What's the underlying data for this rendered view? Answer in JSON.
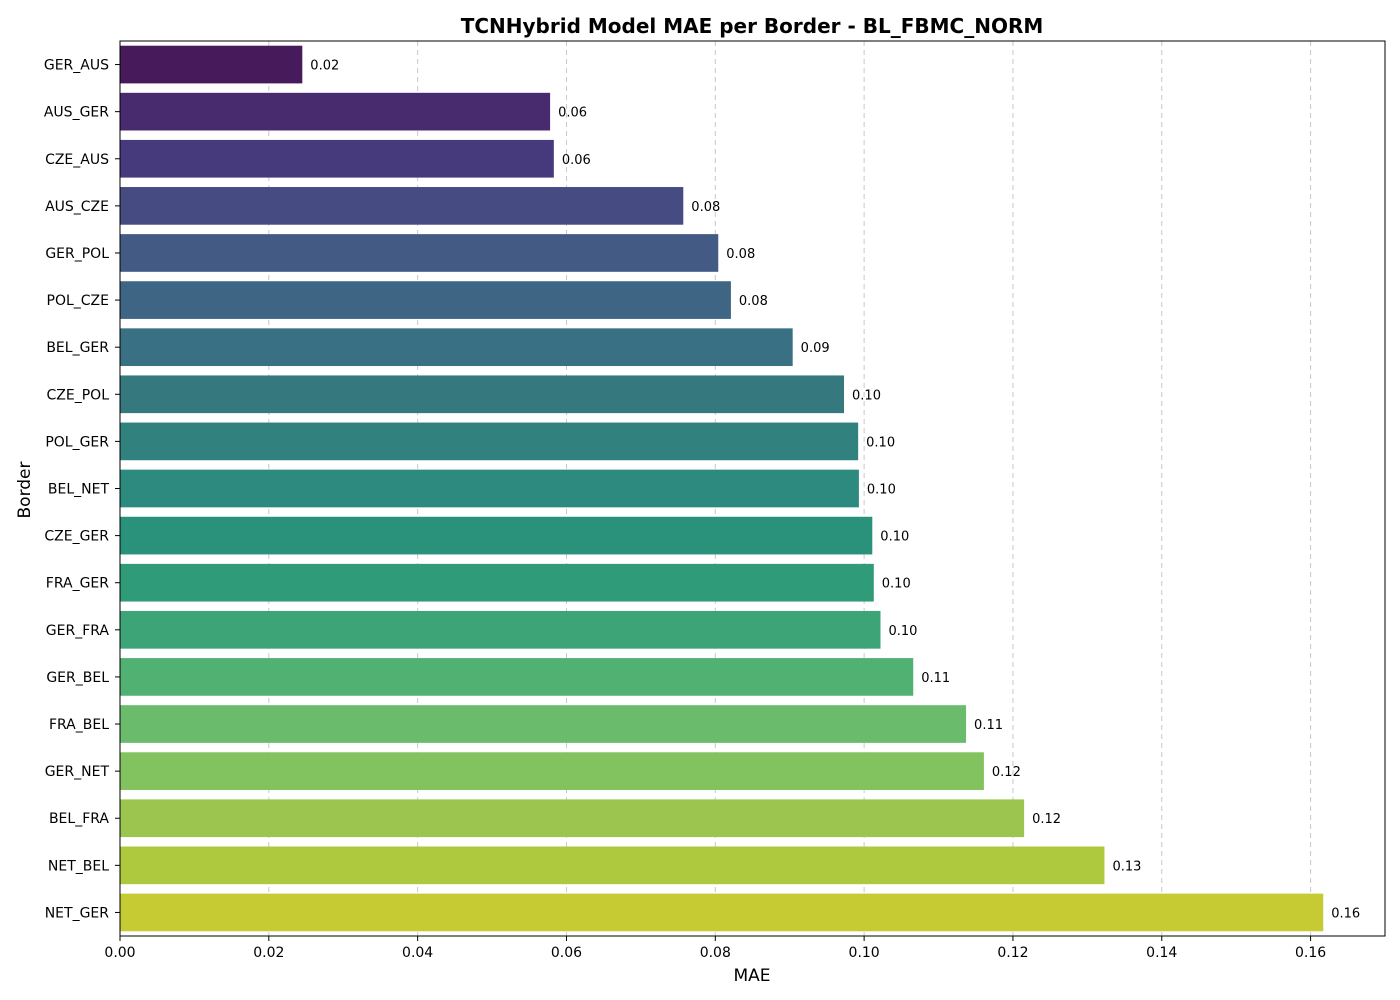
{
  "chart_data": {
    "type": "bar",
    "orientation": "horizontal",
    "title": "TCNHybrid Model MAE per Border - BL_FBMC_NORM",
    "xlabel": "MAE",
    "ylabel": "Border",
    "xlim": [
      0,
      0.17
    ],
    "xticks": [
      "0.00",
      "0.02",
      "0.04",
      "0.06",
      "0.08",
      "0.10",
      "0.12",
      "0.14",
      "0.16"
    ],
    "grid": "x-axis dashed",
    "colormap": "viridis",
    "categories": [
      "GER_AUS",
      "AUS_GER",
      "CZE_AUS",
      "AUS_CZE",
      "GER_POL",
      "POL_CZE",
      "BEL_GER",
      "CZE_POL",
      "POL_GER",
      "BEL_NET",
      "CZE_GER",
      "FRA_GER",
      "GER_FRA",
      "GER_BEL",
      "FRA_BEL",
      "GER_NET",
      "BEL_FRA",
      "NET_BEL",
      "NET_GER"
    ],
    "values": [
      0.0245,
      0.0578,
      0.0583,
      0.0757,
      0.0804,
      0.0821,
      0.0904,
      0.0973,
      0.0992,
      0.0993,
      0.1011,
      0.1013,
      0.1022,
      0.1066,
      0.1137,
      0.1161,
      0.1215,
      0.1323,
      0.1617
    ],
    "value_labels": [
      "0.02",
      "0.06",
      "0.06",
      "0.08",
      "0.08",
      "0.08",
      "0.09",
      "0.10",
      "0.10",
      "0.10",
      "0.10",
      "0.10",
      "0.10",
      "0.11",
      "0.11",
      "0.12",
      "0.12",
      "0.13",
      "0.16"
    ],
    "colors": [
      "#471b5b",
      "#482b6f",
      "#473a7c",
      "#464b82",
      "#435a84",
      "#3f6585",
      "#3a7083",
      "#35797f",
      "#31827e",
      "#2d8a7e",
      "#2a927b",
      "#2f9b78",
      "#3da477",
      "#50b172",
      "#6bbb6c",
      "#82c35f",
      "#9cc54f",
      "#aec93e",
      "#c6ca33"
    ]
  }
}
